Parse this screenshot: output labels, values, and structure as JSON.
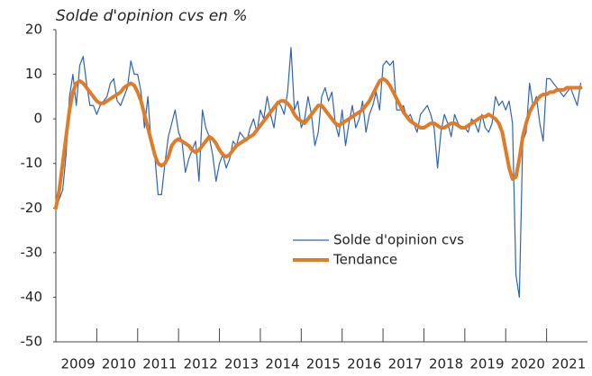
{
  "chart_data": {
    "type": "line",
    "title": "Solde d'opinion cvs en %",
    "categories": [
      null,
      null,
      null,
      null,
      null,
      null,
      "2009",
      null,
      null,
      null,
      null,
      null,
      null,
      null,
      null,
      null,
      null,
      null,
      "2010",
      null,
      null,
      null,
      null,
      null,
      null,
      null,
      null,
      null,
      null,
      null,
      "2011",
      null,
      null,
      null,
      null,
      null,
      null,
      null,
      null,
      null,
      null,
      null,
      "2012",
      null,
      null,
      null,
      null,
      null,
      null,
      null,
      null,
      null,
      null,
      null,
      "2013",
      null,
      null,
      null,
      null,
      null,
      null,
      null,
      null,
      null,
      null,
      null,
      "2014",
      null,
      null,
      null,
      null,
      null,
      null,
      null,
      null,
      null,
      null,
      null,
      "2015",
      null,
      null,
      null,
      null,
      null,
      null,
      null,
      null,
      null,
      null,
      null,
      "2016",
      null,
      null,
      null,
      null,
      null,
      null,
      null,
      null,
      null,
      null,
      null,
      "2017",
      null,
      null,
      null,
      null,
      null,
      null,
      null,
      null,
      null,
      null,
      null,
      "2018",
      null,
      null,
      null,
      null,
      null,
      null,
      null,
      null,
      null,
      null,
      null,
      "2019",
      null,
      null,
      null,
      null,
      null,
      null,
      null,
      null,
      null,
      null,
      null,
      "2020",
      null,
      null,
      null,
      null,
      null,
      null,
      null,
      null,
      null,
      null,
      null,
      "2021",
      null,
      null,
      null,
      null,
      null
    ],
    "series": [
      {
        "name": "Solde d'opinion cvs",
        "color": "#2e64b5",
        "values": [
          -20,
          -18,
          -16,
          -8,
          5,
          10,
          3,
          12,
          14,
          8,
          3,
          3,
          1,
          3,
          4,
          5,
          8,
          9,
          4,
          3,
          5,
          7,
          13,
          10,
          10,
          6,
          -2,
          5,
          -6,
          -8,
          -17,
          -17,
          -10,
          -4,
          -1,
          2,
          -3,
          -5,
          -12,
          -9,
          -7,
          -5,
          -14,
          2,
          -2,
          -4,
          -8,
          -14,
          -10,
          -8,
          -11,
          -9,
          -5,
          -6,
          -3,
          -4,
          -5,
          -2,
          0,
          -3,
          2,
          0,
          5,
          1,
          -2,
          4,
          3,
          1,
          6,
          16,
          2,
          4,
          -2,
          0,
          5,
          1,
          -6,
          -3,
          5,
          7,
          4,
          6,
          -1,
          -4,
          2,
          -6,
          -1,
          3,
          -2,
          0,
          4,
          -3,
          1,
          3,
          6,
          2,
          12,
          13,
          12,
          13,
          2,
          2,
          3,
          0,
          1,
          -1,
          -3,
          1,
          2,
          3,
          1,
          -2,
          -11,
          -3,
          1,
          -1,
          -4,
          1,
          -1,
          -2,
          -2,
          -3,
          0,
          -1,
          -3,
          1,
          -2,
          -3,
          -1,
          5,
          3,
          4,
          2,
          4,
          -1,
          -35,
          -40,
          -5,
          -3,
          8,
          3,
          5,
          -1,
          -5,
          9,
          9,
          8,
          7,
          6,
          5,
          6,
          7,
          5,
          3,
          8,
          null
        ]
      },
      {
        "name": "Tendance",
        "color": "#e07b28",
        "values": [
          -20,
          -16,
          -10,
          -4,
          2,
          6,
          8,
          8.5,
          8,
          7,
          6,
          5,
          4,
          3.5,
          3.5,
          4,
          4.5,
          5,
          5.5,
          6,
          7,
          7.5,
          8,
          7.5,
          6,
          4,
          1,
          -2,
          -5,
          -8,
          -10,
          -10.5,
          -10,
          -8.5,
          -6,
          -5,
          -4.5,
          -5,
          -5.5,
          -6,
          -7,
          -7.5,
          -7,
          -6,
          -5,
          -4,
          -4.5,
          -5.5,
          -7,
          -8,
          -8.5,
          -8,
          -7,
          -6,
          -5.5,
          -5,
          -4.5,
          -4,
          -3.5,
          -2.5,
          -1.5,
          -0.5,
          0.5,
          1.5,
          2.5,
          3.5,
          4,
          4,
          3.5,
          2.5,
          1,
          0,
          -0.5,
          -1,
          0,
          1,
          2,
          3,
          3,
          2,
          1,
          0,
          -1,
          -1.5,
          -1,
          -0.5,
          0,
          0.5,
          1,
          1.5,
          2,
          3,
          4,
          5.5,
          7,
          8.5,
          9,
          8.5,
          7.5,
          6,
          4.5,
          3,
          1.5,
          0.5,
          -0.5,
          -1,
          -1.5,
          -2,
          -2,
          -1.5,
          -1,
          -1,
          -1.5,
          -2,
          -2,
          -1.5,
          -1,
          -1,
          -1.5,
          -2,
          -2,
          -1.5,
          -1,
          -0.5,
          0,
          0.5,
          0.5,
          1,
          0.5,
          0,
          -1,
          -3,
          -7,
          -11,
          -13.5,
          -13,
          -9,
          -4,
          -1,
          1.5,
          3,
          4,
          5,
          5.5,
          5.5,
          6,
          6,
          6.5,
          6.5,
          6.5,
          7,
          7,
          7,
          7,
          7,
          null
        ]
      }
    ],
    "ylim": [
      -50,
      20
    ],
    "yticks": [
      20,
      10,
      0,
      -10,
      -20,
      -30,
      -40,
      -50
    ]
  }
}
